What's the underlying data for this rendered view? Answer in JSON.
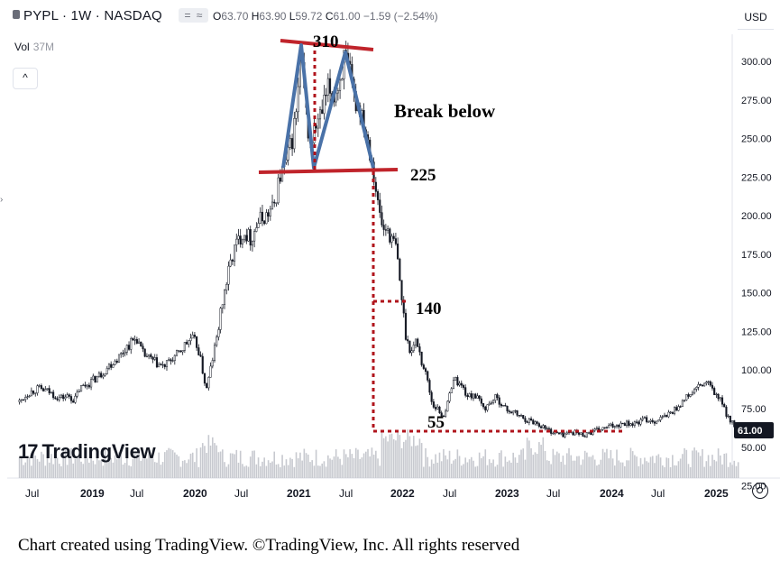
{
  "header": {
    "symbol": "PYPL · 1W · NASDAQ",
    "btn_eq": "=",
    "btn_wave": "≈",
    "ohlc": {
      "o_label": "O",
      "o": "63.70",
      "h_label": "H",
      "h": "63.90",
      "l_label": "L",
      "l": "59.72",
      "c_label": "C",
      "c": "61.00",
      "change": "−1.59 (−2.54%)"
    },
    "currency": "USD"
  },
  "vol": {
    "label": "Vol",
    "value": "37M"
  },
  "collapse_label": "^",
  "logo_text": "TradingView",
  "logo_mark": "17",
  "caption": "Chart created using TradingView. ©TradingView, Inc. All rights reserved",
  "colors": {
    "candle": "#131722",
    "volume": "#c7c9cf",
    "annotation_line": "#c0242b",
    "pattern": "#4a72a8",
    "dotted": "#b0141c",
    "price_badge": "#131722"
  },
  "chart_data": {
    "type": "line",
    "title": "",
    "price_axis": {
      "ticks": [
        300,
        275,
        250,
        225,
        200,
        175,
        150,
        125,
        100,
        75,
        50,
        25
      ],
      "labels": [
        "300.00",
        "275.00",
        "250.00",
        "225.00",
        "200.00",
        "175.00",
        "150.00",
        "125.00",
        "100.00",
        "75.00",
        "50.00",
        "25.00"
      ],
      "ylim": [
        18,
        320
      ]
    },
    "time_axis": {
      "labels": [
        "Jul",
        "2019",
        "Jul",
        "2020",
        "Jul",
        "2021",
        "Jul",
        "2022",
        "Jul",
        "2023",
        "Jul",
        "2024",
        "Jul",
        "2025"
      ],
      "bold": [
        false,
        true,
        false,
        true,
        false,
        true,
        false,
        true,
        false,
        true,
        false,
        true,
        false,
        true
      ]
    },
    "last_price": {
      "value": 61.0,
      "label": "61.00"
    },
    "series": [
      {
        "values": [
          [
            2018.4,
            78
          ],
          [
            2018.5,
            85
          ],
          [
            2018.6,
            88
          ],
          [
            2018.7,
            86
          ],
          [
            2018.8,
            82
          ],
          [
            2018.9,
            83
          ],
          [
            2018.95,
            80
          ],
          [
            2019.0,
            88
          ],
          [
            2019.1,
            92
          ],
          [
            2019.2,
            97
          ],
          [
            2019.3,
            104
          ],
          [
            2019.4,
            110
          ],
          [
            2019.45,
            115
          ],
          [
            2019.5,
            118
          ],
          [
            2019.55,
            121
          ],
          [
            2019.6,
            111
          ],
          [
            2019.7,
            106
          ],
          [
            2019.8,
            102
          ],
          [
            2019.85,
            104
          ],
          [
            2019.9,
            108
          ],
          [
            2019.95,
            110
          ],
          [
            2020.0,
            115
          ],
          [
            2020.08,
            121
          ],
          [
            2020.14,
            115
          ],
          [
            2020.2,
            95
          ],
          [
            2020.22,
            86
          ],
          [
            2020.26,
            100
          ],
          [
            2020.32,
            120
          ],
          [
            2020.38,
            145
          ],
          [
            2020.45,
            168
          ],
          [
            2020.5,
            180
          ],
          [
            2020.58,
            190
          ],
          [
            2020.65,
            185
          ],
          [
            2020.72,
            196
          ],
          [
            2020.8,
            200
          ],
          [
            2020.87,
            205
          ],
          [
            2020.93,
            225
          ],
          [
            2021.0,
            235
          ],
          [
            2021.05,
            250
          ],
          [
            2021.1,
            272
          ],
          [
            2021.13,
            305
          ],
          [
            2021.17,
            275
          ],
          [
            2021.22,
            245
          ],
          [
            2021.28,
            258
          ],
          [
            2021.33,
            265
          ],
          [
            2021.4,
            282
          ],
          [
            2021.45,
            278
          ],
          [
            2021.5,
            285
          ],
          [
            2021.55,
            302
          ],
          [
            2021.6,
            292
          ],
          [
            2021.65,
            275
          ],
          [
            2021.72,
            268
          ],
          [
            2021.78,
            250
          ],
          [
            2021.83,
            232
          ],
          [
            2021.88,
            205
          ],
          [
            2021.93,
            190
          ],
          [
            2021.97,
            192
          ],
          [
            2022.0,
            185
          ],
          [
            2022.05,
            180
          ],
          [
            2022.1,
            150
          ],
          [
            2022.15,
            120
          ],
          [
            2022.2,
            112
          ],
          [
            2022.25,
            120
          ],
          [
            2022.3,
            105
          ],
          [
            2022.35,
            95
          ],
          [
            2022.4,
            78
          ],
          [
            2022.45,
            75
          ],
          [
            2022.5,
            70
          ],
          [
            2022.55,
            78
          ],
          [
            2022.6,
            95
          ],
          [
            2022.65,
            92
          ],
          [
            2022.7,
            88
          ],
          [
            2022.75,
            82
          ],
          [
            2022.8,
            85
          ],
          [
            2022.85,
            80
          ],
          [
            2022.9,
            75
          ],
          [
            2022.95,
            78
          ],
          [
            2023.0,
            82
          ],
          [
            2023.05,
            80
          ],
          [
            2023.1,
            75
          ],
          [
            2023.2,
            72
          ],
          [
            2023.3,
            68
          ],
          [
            2023.4,
            66
          ],
          [
            2023.45,
            64
          ],
          [
            2023.5,
            62
          ],
          [
            2023.55,
            60
          ],
          [
            2023.65,
            58
          ],
          [
            2023.75,
            60
          ],
          [
            2023.85,
            58
          ],
          [
            2023.95,
            60
          ],
          [
            2024.05,
            62
          ],
          [
            2024.15,
            64
          ],
          [
            2024.25,
            66
          ],
          [
            2024.35,
            65
          ],
          [
            2024.45,
            68
          ],
          [
            2024.55,
            67
          ],
          [
            2024.65,
            70
          ],
          [
            2024.75,
            75
          ],
          [
            2024.85,
            82
          ],
          [
            2024.95,
            88
          ],
          [
            2025.05,
            92
          ],
          [
            2025.1,
            87
          ],
          [
            2025.18,
            80
          ],
          [
            2025.25,
            70
          ],
          [
            2025.3,
            65
          ],
          [
            2025.35,
            61
          ]
        ]
      }
    ],
    "volume": {
      "label": "Vol",
      "value": "37M"
    },
    "annotations": {
      "top_label": "310",
      "neckline_label": "225",
      "break_text": "Break below",
      "target1_label": "140",
      "target2_label": "55",
      "neckline_value": 225,
      "top_value": 310,
      "target1_value": 140,
      "target2_value": 55,
      "pattern_points": [
        [
          2020.95,
          225
        ],
        [
          2021.12,
          305
        ],
        [
          2021.26,
          225
        ],
        [
          2021.5,
          305
        ],
        [
          2021.82,
          225
        ]
      ]
    }
  }
}
